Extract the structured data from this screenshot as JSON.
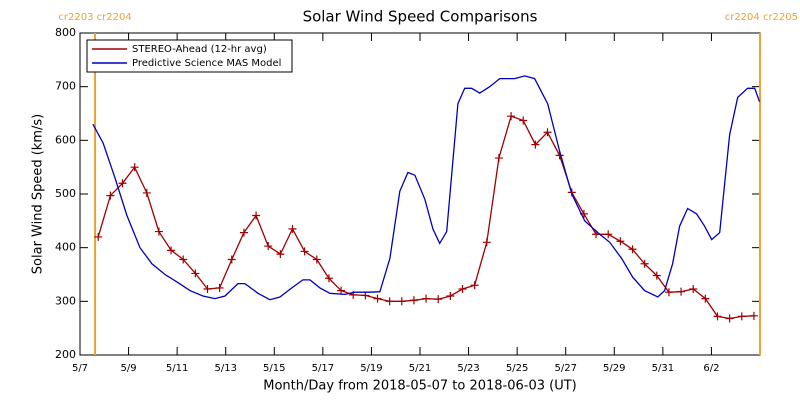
{
  "chart_data": {
    "type": "line",
    "title": "Solar Wind Speed Comparisons",
    "xlabel": "Month/Day from 2018-05-07 to 2018-06-03 (UT)",
    "ylabel": "Solar Wind Speed (km/s)",
    "xlim": [
      0,
      28
    ],
    "xticks": [
      {
        "value": 0,
        "label": "5/7"
      },
      {
        "value": 2,
        "label": "5/9"
      },
      {
        "value": 4,
        "label": "5/11"
      },
      {
        "value": 6,
        "label": "5/13"
      },
      {
        "value": 8,
        "label": "5/15"
      },
      {
        "value": 10,
        "label": "5/17"
      },
      {
        "value": 12,
        "label": "5/19"
      },
      {
        "value": 14,
        "label": "5/21"
      },
      {
        "value": 16,
        "label": "5/23"
      },
      {
        "value": 18,
        "label": "5/25"
      },
      {
        "value": 20,
        "label": "5/27"
      },
      {
        "value": 22,
        "label": "5/29"
      },
      {
        "value": 24,
        "label": "5/31"
      },
      {
        "value": 26,
        "label": "6/2"
      }
    ],
    "ylim": [
      200,
      800
    ],
    "yticks": [
      200,
      300,
      400,
      500,
      600,
      700,
      800
    ],
    "legend": "upper left",
    "vlines": [
      {
        "x": 0.62,
        "label": "cr2203 cr2204",
        "color": "#f0a030"
      },
      {
        "x": 28,
        "label": "cr2204 cr2205",
        "color": "#f0a030"
      }
    ],
    "series": [
      {
        "name": "STEREO-Ahead (12-hr avg)",
        "color": "#a00000",
        "marker": "+",
        "x": [
          0.75,
          1.25,
          1.75,
          2.25,
          2.75,
          3.25,
          3.75,
          4.25,
          4.75,
          5.25,
          5.75,
          6.25,
          6.75,
          7.25,
          7.75,
          8.25,
          8.75,
          9.25,
          9.75,
          10.25,
          10.75,
          11.25,
          11.75,
          12.25,
          12.75,
          13.25,
          13.75,
          14.25,
          14.75,
          15.25,
          15.75,
          16.25,
          16.75,
          17.25,
          17.75,
          18.25,
          18.75,
          19.25,
          19.75,
          20.25,
          20.75,
          21.25,
          21.75,
          22.25,
          22.75,
          23.25,
          23.75,
          24.25,
          24.75,
          25.25,
          25.75,
          26.25,
          26.75,
          27.25,
          27.75
        ],
        "values": [
          420,
          497,
          520,
          550,
          502,
          430,
          395,
          378,
          352,
          323,
          325,
          378,
          428,
          460,
          403,
          388,
          435,
          393,
          378,
          343,
          320,
          312,
          311,
          305,
          300,
          300,
          302,
          305,
          304,
          310,
          323,
          330,
          410,
          567,
          645,
          637,
          592,
          615,
          572,
          503,
          463,
          425,
          425,
          412,
          397,
          370,
          348,
          317,
          318,
          323,
          305,
          272,
          268,
          272,
          273
        ]
      },
      {
        "name": "Predictive Science MAS Model",
        "color": "#0000c0",
        "x": [
          0.53,
          0.95,
          1.44,
          1.93,
          2.47,
          2.96,
          3.5,
          4.03,
          4.53,
          5.06,
          5.56,
          5.97,
          6.5,
          6.79,
          7.33,
          7.82,
          8.23,
          8.72,
          9.18,
          9.47,
          9.88,
          10.29,
          10.91,
          11.32,
          11.93,
          12.35,
          12.76,
          13.17,
          13.5,
          13.79,
          14.2,
          14.53,
          14.81,
          15.1,
          15.56,
          15.84,
          16.13,
          16.46,
          16.87,
          17.28,
          17.9,
          18.31,
          18.72,
          19.26,
          19.75,
          20.25,
          20.78,
          21.32,
          21.81,
          22.3,
          22.76,
          23.25,
          23.79,
          24.07,
          24.4,
          24.69,
          25.02,
          25.39,
          25.72,
          26.01,
          26.34,
          26.75,
          27.08,
          27.49,
          27.78,
          27.98
        ],
        "values": [
          630,
          595,
          530,
          460,
          400,
          370,
          350,
          335,
          320,
          310,
          305,
          310,
          333,
          333,
          315,
          303,
          308,
          325,
          340,
          340,
          325,
          315,
          313,
          317,
          317,
          318,
          380,
          505,
          540,
          535,
          490,
          435,
          408,
          430,
          668,
          697,
          697,
          688,
          700,
          715,
          715,
          720,
          715,
          668,
          580,
          500,
          450,
          428,
          410,
          380,
          345,
          320,
          308,
          320,
          370,
          440,
          473,
          463,
          440,
          415,
          428,
          610,
          680,
          697,
          697,
          672
        ]
      }
    ]
  }
}
